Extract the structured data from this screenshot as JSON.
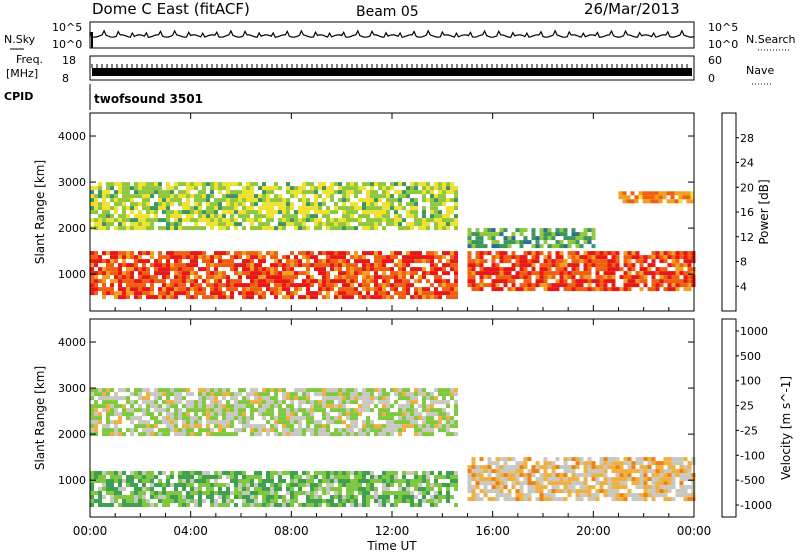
{
  "header": {
    "station": "Dome C East (fitACF)",
    "beam": "Beam 05",
    "date": "26/Mar/2013"
  },
  "noise_panel": {
    "left_label": "N.Sky",
    "right_label": "N.Search",
    "left_ticks": [
      "10^5",
      "10^0"
    ],
    "right_ticks": [
      "10^5",
      "10^0"
    ]
  },
  "freq_panel": {
    "left_label_1": "Freq.",
    "left_label_2": "[MHz]",
    "right_label": "Nave",
    "left_ticks": [
      "18",
      "8"
    ],
    "right_ticks": [
      "60",
      "0"
    ]
  },
  "cpid_panel": {
    "label": "CPID",
    "value": "twofsound 3501"
  },
  "colors": {
    "power_scale": [
      "#0a1ef0",
      "#1e46b4",
      "#2e6e8e",
      "#3c9660",
      "#8fc83c",
      "#f0e030",
      "#f0a020",
      "#f06010",
      "#e81818"
    ],
    "velocity_scale": [
      "#2840c0",
      "#2e7890",
      "#3ea050",
      "#80c840",
      "#c8c8c0",
      "#f0b040",
      "#f08010",
      "#f04010",
      "#e81818"
    ]
  },
  "chart_data": [
    {
      "type": "heatmap",
      "name": "power",
      "ylabel": "Slant Range [km]",
      "ylim": [
        200,
        4500
      ],
      "yticks": [
        "1000",
        "2000",
        "3000",
        "4000"
      ],
      "x_ticks": [
        "00:00",
        "04:00",
        "08:00",
        "12:00",
        "16:00",
        "20:00",
        "00:00"
      ],
      "colorbar": {
        "label": "Power [dB]",
        "ticks": [
          "4",
          "8",
          "12",
          "16",
          "20",
          "24",
          "28"
        ]
      },
      "regions": [
        {
          "x_start": "00:00",
          "x_end": "14:30",
          "range_min": 500,
          "range_max": 1500,
          "value_db": 28
        },
        {
          "x_start": "15:00",
          "x_end": "24:00",
          "range_min": 700,
          "range_max": 1500,
          "value_db": 26
        },
        {
          "x_start": "00:00",
          "x_end": "14:30",
          "range_min": 2000,
          "range_max": 3000,
          "value_db": 14
        },
        {
          "x_start": "21:00",
          "x_end": "24:00",
          "range_min": 2600,
          "range_max": 2800,
          "value_db": 22
        },
        {
          "x_start": "15:00",
          "x_end": "20:00",
          "range_min": 1600,
          "range_max": 2000,
          "value_db": 10
        }
      ]
    },
    {
      "type": "heatmap",
      "name": "velocity",
      "ylabel": "Slant Range [km]",
      "ylim": [
        200,
        4500
      ],
      "yticks": [
        "1000",
        "2000",
        "3000",
        "4000"
      ],
      "x_ticks": [
        "00:00",
        "04:00",
        "08:00",
        "12:00",
        "16:00",
        "20:00",
        "00:00"
      ],
      "xlabel": "Time UT",
      "colorbar": {
        "label": "Velocity [m s^-1]",
        "ticks": [
          "1000",
          "500",
          "100",
          "25",
          "-25",
          "-100",
          "-500",
          "-1000"
        ]
      },
      "regions": [
        {
          "x_start": "00:00",
          "x_end": "14:30",
          "range_min": 500,
          "range_max": 1200,
          "value_ms": 200
        },
        {
          "x_start": "15:00",
          "x_end": "24:00",
          "range_min": 600,
          "range_max": 1500,
          "value_ms": -300
        },
        {
          "x_start": "00:00",
          "x_end": "14:30",
          "range_min": 2000,
          "range_max": 3000,
          "value_ms": 0
        }
      ]
    }
  ]
}
